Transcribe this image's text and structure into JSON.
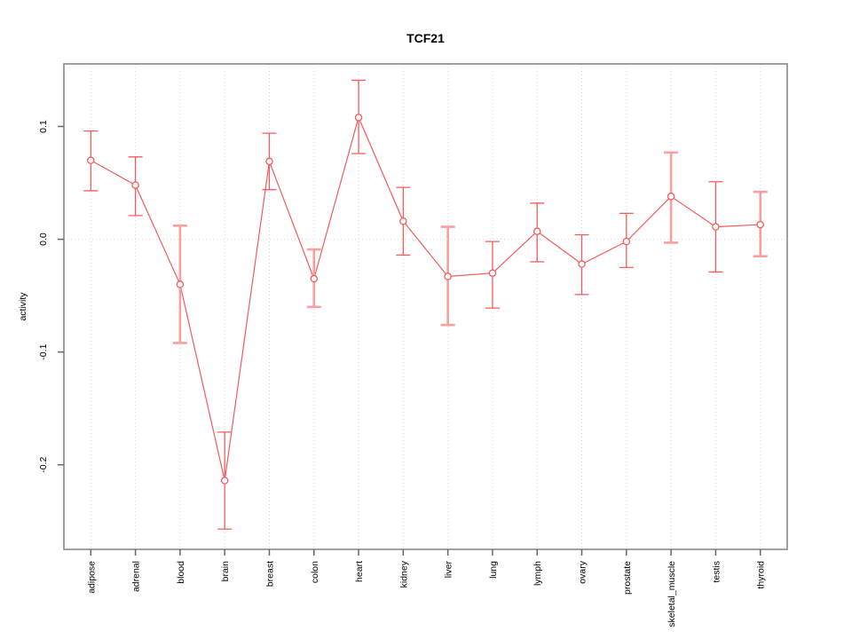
{
  "chart_data": {
    "type": "line",
    "title": "TCF21",
    "xlabel": "",
    "ylabel": "activity",
    "legend": "none",
    "categories": [
      "adipose",
      "adrenal",
      "blood",
      "brain",
      "breast",
      "colon",
      "heart",
      "kidney",
      "liver",
      "lung",
      "lymph",
      "ovary",
      "prostate",
      "skeletal_muscle",
      "testis",
      "thyroid"
    ],
    "series": [
      {
        "name": "activity",
        "values": [
          0.07,
          0.048,
          -0.04,
          -0.214,
          0.069,
          -0.035,
          0.108,
          0.016,
          -0.033,
          -0.03,
          0.007,
          -0.022,
          -0.002,
          0.038,
          0.011,
          0.013
        ],
        "ci_low": [
          0.043,
          0.021,
          -0.092,
          -0.257,
          0.044,
          -0.06,
          0.076,
          -0.014,
          -0.076,
          -0.061,
          -0.02,
          -0.049,
          -0.025,
          -0.003,
          -0.029,
          -0.015
        ],
        "ci_high": [
          0.096,
          0.073,
          0.012,
          -0.171,
          0.094,
          -0.009,
          0.141,
          0.046,
          0.011,
          -0.002,
          0.032,
          0.004,
          0.023,
          0.077,
          0.051,
          0.042
        ]
      }
    ],
    "wide_bar_indices": [
      2,
      5,
      8,
      13,
      15
    ],
    "ylim": [
      -0.275,
      0.1555
    ],
    "yticks": [
      0.1,
      0.0,
      -0.1,
      -0.2
    ],
    "ytick_labels": [
      "0.1",
      "0.0",
      "-0.1",
      "-0.2"
    ],
    "grid": {
      "vertical": "dotted at each category",
      "horizontal_at": 0
    },
    "colors": {
      "line": "#f45b5b",
      "marker": "#f45b5b",
      "wide_bar": "#f8a0a0",
      "grid": "#d8d8d8",
      "box": "#888888",
      "tick": "#666666",
      "text": "#000000",
      "background": "#ffffff"
    }
  }
}
